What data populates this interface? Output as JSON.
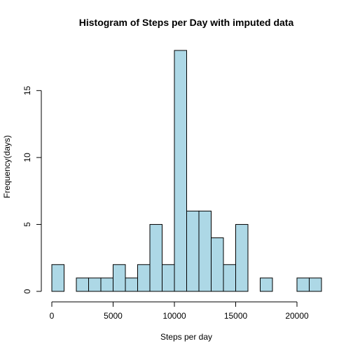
{
  "chart_data": {
    "type": "bar",
    "title": "Histogram of Steps per Day with imputed data",
    "xlabel": "Steps per day",
    "ylabel": "Frequency(days)",
    "bin_width": 1000,
    "bins": [
      {
        "from": 0,
        "to": 1000,
        "count": 2
      },
      {
        "from": 1000,
        "to": 2000,
        "count": 0
      },
      {
        "from": 2000,
        "to": 3000,
        "count": 1
      },
      {
        "from": 3000,
        "to": 4000,
        "count": 1
      },
      {
        "from": 4000,
        "to": 5000,
        "count": 1
      },
      {
        "from": 5000,
        "to": 6000,
        "count": 2
      },
      {
        "from": 6000,
        "to": 7000,
        "count": 1
      },
      {
        "from": 7000,
        "to": 8000,
        "count": 2
      },
      {
        "from": 8000,
        "to": 9000,
        "count": 5
      },
      {
        "from": 9000,
        "to": 10000,
        "count": 2
      },
      {
        "from": 10000,
        "to": 11000,
        "count": 18
      },
      {
        "from": 11000,
        "to": 12000,
        "count": 6
      },
      {
        "from": 12000,
        "to": 13000,
        "count": 6
      },
      {
        "from": 13000,
        "to": 14000,
        "count": 4
      },
      {
        "from": 14000,
        "to": 15000,
        "count": 2
      },
      {
        "from": 15000,
        "to": 16000,
        "count": 5
      },
      {
        "from": 16000,
        "to": 17000,
        "count": 0
      },
      {
        "from": 17000,
        "to": 18000,
        "count": 1
      },
      {
        "from": 18000,
        "to": 19000,
        "count": 0
      },
      {
        "from": 19000,
        "to": 20000,
        "count": 0
      },
      {
        "from": 20000,
        "to": 21000,
        "count": 1
      },
      {
        "from": 21000,
        "to": 22000,
        "count": 1
      }
    ],
    "xlim": [
      0,
      22000
    ],
    "ylim": [
      0,
      18
    ],
    "x_ticks": [
      0,
      5000,
      10000,
      15000,
      20000
    ],
    "y_ticks": [
      0,
      5,
      10,
      15
    ],
    "bar_color": "#add8e6",
    "grid": false,
    "legend": "none"
  }
}
